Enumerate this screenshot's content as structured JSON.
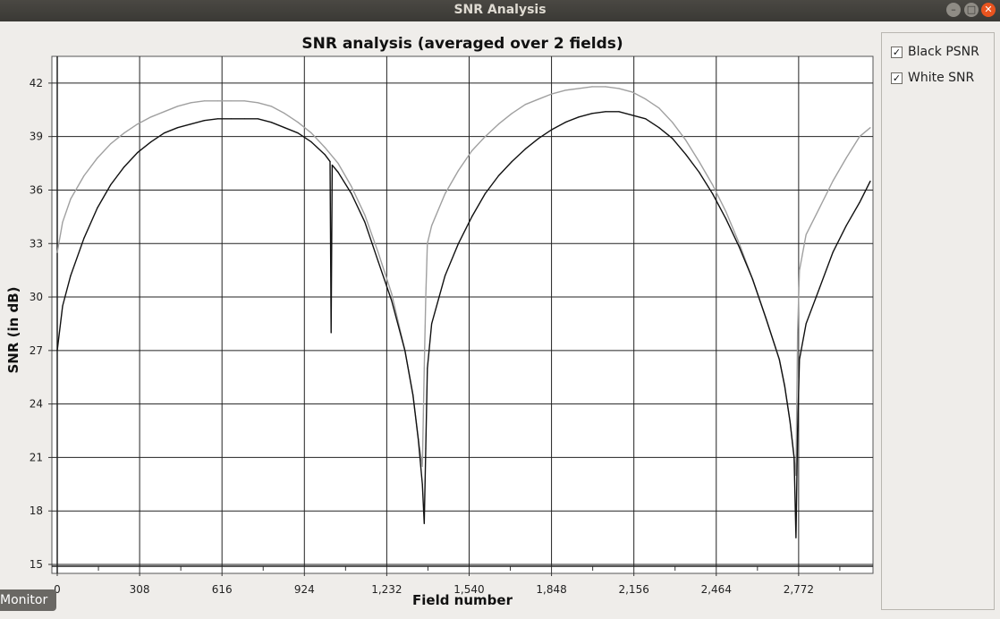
{
  "window": {
    "title": "SNR Analysis"
  },
  "controls": {
    "minimize": "–",
    "maximize": "□",
    "close": "✕"
  },
  "legend": {
    "items": [
      {
        "label": "Black PSNR",
        "checked": true,
        "check": "✓",
        "color": "#111111"
      },
      {
        "label": "White SNR",
        "checked": true,
        "check": "✓",
        "color": "#a0a0a0"
      }
    ]
  },
  "monitor_tab": {
    "label": "Monitor"
  },
  "chart_data": {
    "type": "line",
    "title": "SNR analysis (averaged over 2 fields)",
    "xlabel": "Field number",
    "ylabel": "SNR (in dB)",
    "xlim": [
      0,
      3050
    ],
    "ylim": [
      15,
      43.5
    ],
    "xticks": [
      0,
      308,
      616,
      924,
      1232,
      1540,
      1848,
      2156,
      2464,
      2772
    ],
    "xtick_labels": [
      "0",
      "308",
      "616",
      "924",
      "1,232",
      "1,540",
      "1,848",
      "2,156",
      "2,464",
      "2,772"
    ],
    "yticks": [
      15,
      18,
      21,
      24,
      27,
      30,
      33,
      36,
      39,
      42
    ],
    "ytick_labels": [
      "15",
      "18",
      "21",
      "24",
      "27",
      "30",
      "33",
      "36",
      "39",
      "42"
    ],
    "grid": true,
    "legend_position": "right",
    "series": [
      {
        "name": "Black PSNR",
        "color": "#111111",
        "x": [
          0,
          20,
          50,
          100,
          150,
          200,
          250,
          300,
          350,
          400,
          450,
          500,
          550,
          600,
          650,
          700,
          750,
          800,
          850,
          900,
          950,
          1000,
          1020,
          1024,
          1028,
          1050,
          1100,
          1150,
          1200,
          1250,
          1300,
          1330,
          1350,
          1365,
          1372,
          1378,
          1384,
          1400,
          1450,
          1500,
          1550,
          1600,
          1650,
          1700,
          1750,
          1800,
          1850,
          1900,
          1950,
          2000,
          2050,
          2100,
          2150,
          2200,
          2250,
          2300,
          2350,
          2400,
          2450,
          2500,
          2550,
          2600,
          2650,
          2700,
          2720,
          2740,
          2755,
          2762,
          2768,
          2775,
          2800,
          2850,
          2900,
          2950,
          3000,
          3040
        ],
        "values": [
          27.0,
          29.5,
          31.2,
          33.3,
          35.0,
          36.3,
          37.3,
          38.1,
          38.7,
          39.2,
          39.5,
          39.7,
          39.9,
          40.0,
          40.0,
          40.0,
          40.0,
          39.8,
          39.5,
          39.2,
          38.7,
          38.0,
          37.6,
          28.0,
          37.4,
          37.0,
          35.8,
          34.2,
          32.0,
          29.8,
          27.0,
          24.5,
          22.0,
          19.5,
          17.3,
          21.5,
          26.0,
          28.5,
          31.2,
          33.0,
          34.5,
          35.8,
          36.8,
          37.6,
          38.3,
          38.9,
          39.4,
          39.8,
          40.1,
          40.3,
          40.4,
          40.4,
          40.2,
          40.0,
          39.5,
          38.9,
          38.0,
          37.0,
          35.8,
          34.4,
          32.8,
          31.0,
          28.8,
          26.5,
          25.0,
          23.0,
          21.0,
          16.5,
          22.5,
          26.5,
          28.5,
          30.5,
          32.5,
          34.0,
          35.3,
          36.5
        ]
      },
      {
        "name": "White SNR",
        "color": "#a0a0a0",
        "x": [
          0,
          20,
          50,
          100,
          150,
          200,
          250,
          300,
          350,
          400,
          450,
          500,
          550,
          600,
          650,
          700,
          750,
          800,
          850,
          900,
          950,
          1000,
          1050,
          1100,
          1150,
          1200,
          1250,
          1300,
          1330,
          1350,
          1365,
          1372,
          1378,
          1384,
          1400,
          1450,
          1500,
          1550,
          1600,
          1650,
          1700,
          1750,
          1800,
          1850,
          1900,
          1950,
          2000,
          2050,
          2100,
          2150,
          2200,
          2250,
          2300,
          2350,
          2400,
          2450,
          2500,
          2550,
          2600,
          2650,
          2700,
          2720,
          2740,
          2755,
          2762,
          2768,
          2775,
          2800,
          2850,
          2900,
          2950,
          3000,
          3040
        ],
        "values": [
          32.5,
          34.2,
          35.5,
          36.8,
          37.8,
          38.6,
          39.2,
          39.7,
          40.1,
          40.4,
          40.7,
          40.9,
          41.0,
          41.0,
          41.0,
          41.0,
          40.9,
          40.7,
          40.3,
          39.8,
          39.2,
          38.4,
          37.5,
          36.2,
          34.6,
          32.5,
          30.2,
          27.0,
          24.5,
          22.0,
          20.5,
          26.0,
          30.0,
          33.0,
          34.0,
          35.8,
          37.1,
          38.2,
          39.0,
          39.7,
          40.3,
          40.8,
          41.1,
          41.4,
          41.6,
          41.7,
          41.8,
          41.8,
          41.7,
          41.5,
          41.1,
          40.6,
          39.8,
          38.8,
          37.6,
          36.3,
          34.8,
          33.0,
          31.0,
          28.8,
          26.5,
          25.0,
          23.0,
          21.0,
          20.0,
          28.0,
          31.5,
          33.5,
          35.0,
          36.5,
          37.8,
          39.0,
          39.5
        ]
      }
    ]
  }
}
